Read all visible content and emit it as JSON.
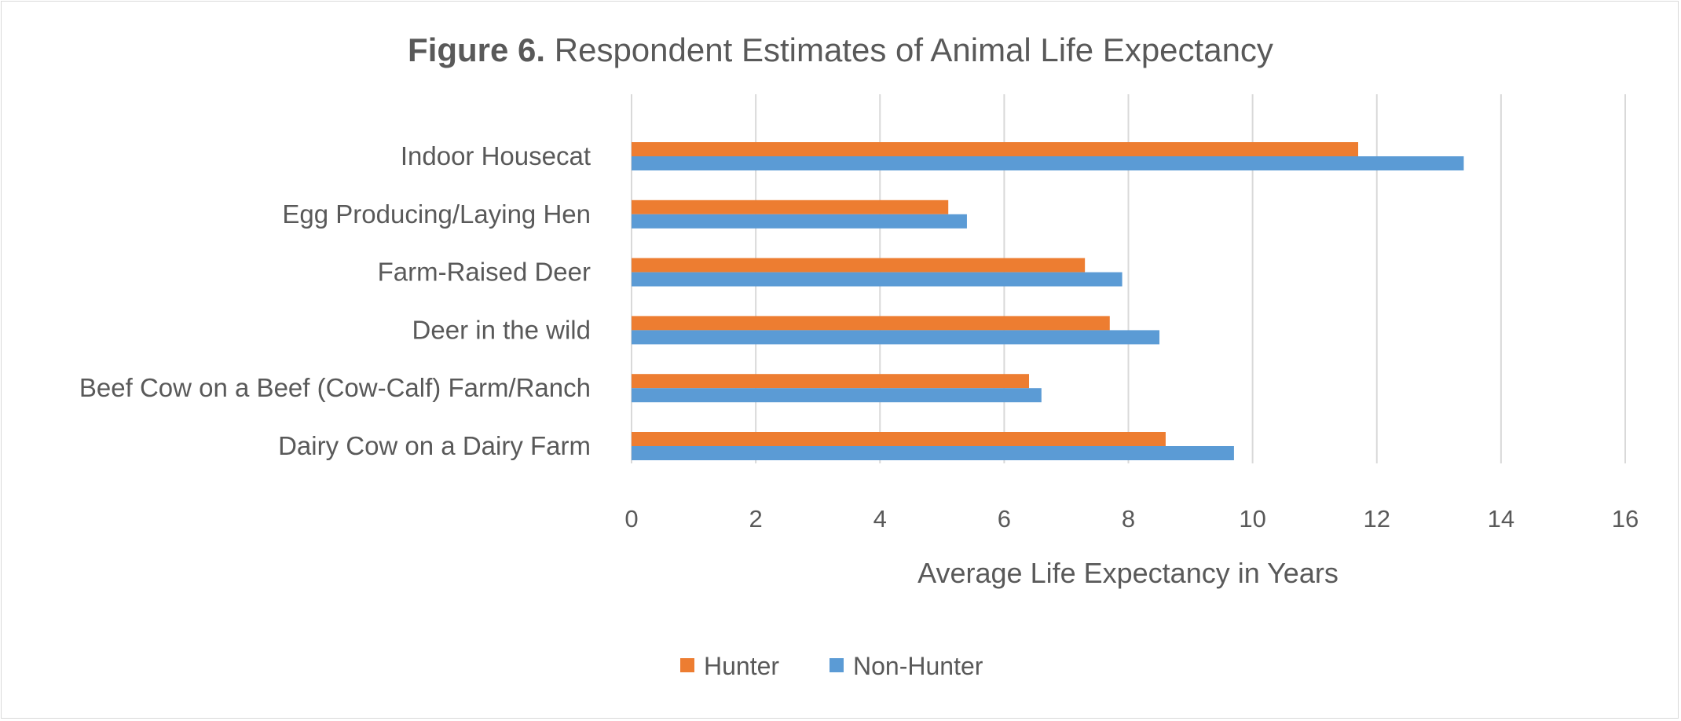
{
  "title": {
    "bold": "Figure 6.",
    "rest": " Respondent Estimates of Animal Life Expectancy"
  },
  "chart_data": {
    "type": "bar",
    "orientation": "horizontal",
    "title": "Figure 6. Respondent Estimates of Animal Life Expectancy",
    "categories": [
      "Indoor Housecat",
      "Egg Producing/Laying Hen",
      "Farm-Raised Deer",
      "Deer in the wild",
      "Beef Cow on a Beef (Cow-Calf) Farm/Ranch",
      "Dairy Cow on a Dairy Farm"
    ],
    "series": [
      {
        "name": "Hunter",
        "color": "#ed7d31",
        "values": [
          11.7,
          5.1,
          7.3,
          7.7,
          6.4,
          8.6
        ]
      },
      {
        "name": "Non-Hunter",
        "color": "#5b9bd5",
        "values": [
          13.4,
          5.4,
          7.9,
          8.5,
          6.6,
          9.7
        ]
      }
    ],
    "xlabel": "Average Life Expectancy in Years",
    "ylabel": "",
    "xlim": [
      0,
      16
    ],
    "xticks": [
      "0",
      "2",
      "4",
      "6",
      "8",
      "10",
      "12",
      "14",
      "16"
    ],
    "grid": "vertical",
    "legend": "bottom"
  }
}
